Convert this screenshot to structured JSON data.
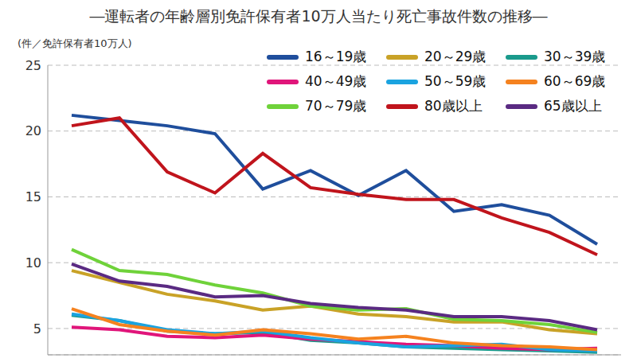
{
  "chart_data": {
    "type": "line",
    "title": "―運転者の年齢層別免許保有者10万人当たり死亡事故件数の推移―",
    "y_label": "(件／免許保有者10万人)",
    "categories": [
      null,
      null,
      null,
      null,
      null,
      null,
      null,
      null,
      null,
      null,
      null,
      null
    ],
    "ylim": [
      3,
      25
    ],
    "yticks": [
      5,
      10,
      15,
      20,
      25
    ],
    "grid": true,
    "legend": "upper right",
    "tick_labels": "y",
    "series": [
      {
        "name": "16～19歳",
        "color": "#1f4e9c",
        "values": [
          21.2,
          20.8,
          20.4,
          19.8,
          15.6,
          17.0,
          15.1,
          17.0,
          13.9,
          14.4,
          13.6,
          11.4
        ]
      },
      {
        "name": "20～29歳",
        "color": "#c9a227",
        "values": [
          9.4,
          8.5,
          7.6,
          7.1,
          6.4,
          6.7,
          6.1,
          5.9,
          5.5,
          5.5,
          4.9,
          4.6
        ]
      },
      {
        "name": "30～39歳",
        "color": "#1a9a8c",
        "values": [
          6.0,
          5.6,
          4.8,
          4.6,
          4.7,
          4.1,
          3.9,
          3.6,
          3.5,
          3.4,
          3.3,
          3.2
        ]
      },
      {
        "name": "40～49歳",
        "color": "#e0157a",
        "values": [
          5.1,
          4.9,
          4.4,
          4.3,
          4.5,
          4.2,
          4.0,
          3.8,
          3.7,
          3.5,
          3.4,
          3.5
        ]
      },
      {
        "name": "50～59歳",
        "color": "#1aa3e0",
        "values": [
          6.1,
          5.6,
          4.9,
          4.6,
          4.8,
          4.3,
          3.9,
          3.6,
          3.7,
          3.8,
          3.4,
          3.3
        ]
      },
      {
        "name": "60～69歳",
        "color": "#f5821f",
        "values": [
          6.5,
          5.3,
          4.8,
          4.5,
          4.9,
          4.6,
          4.2,
          4.4,
          3.9,
          3.7,
          3.6,
          3.4
        ]
      },
      {
        "name": "70～79歳",
        "color": "#6fd23a",
        "values": [
          11.0,
          9.4,
          9.1,
          8.3,
          7.7,
          6.7,
          6.4,
          6.5,
          5.7,
          5.6,
          5.3,
          4.7
        ]
      },
      {
        "name": "80歳以上",
        "color": "#c0141c",
        "values": [
          20.4,
          21.0,
          16.9,
          15.3,
          18.3,
          15.7,
          15.2,
          14.8,
          14.8,
          13.4,
          12.3,
          10.6
        ]
      },
      {
        "name": "65歳以上",
        "color": "#5a2a82",
        "values": [
          9.9,
          8.6,
          8.2,
          7.4,
          7.5,
          6.9,
          6.6,
          6.4,
          5.9,
          5.9,
          5.6,
          4.9
        ]
      }
    ]
  }
}
